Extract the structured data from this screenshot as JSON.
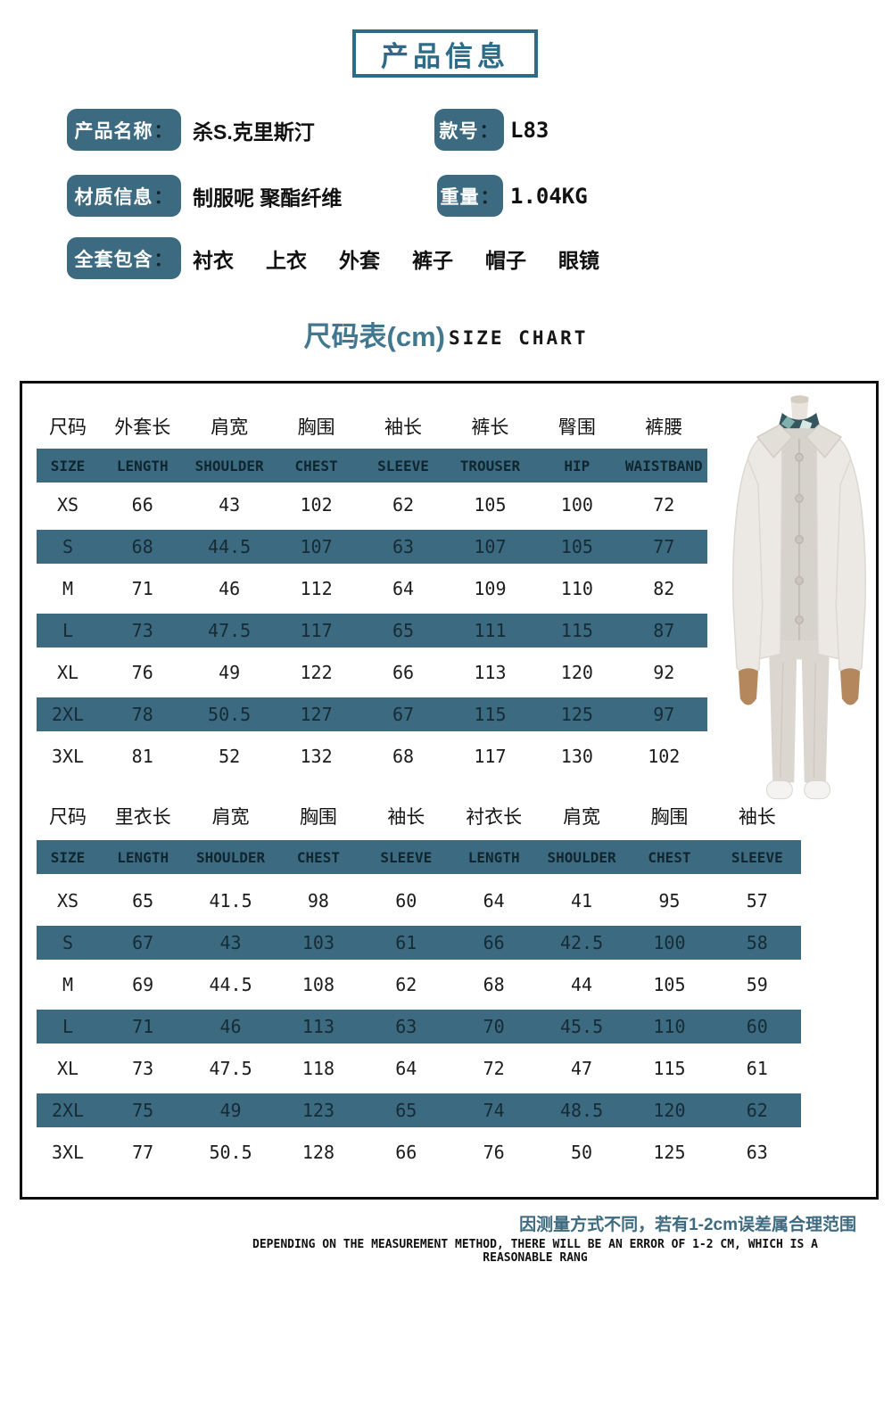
{
  "colors": {
    "accent_teal": "#3c6a80",
    "title_teal": "#2e6b87",
    "heading_teal": "#41788f"
  },
  "punct": {
    "colon": "："
  },
  "page_title": "产品信息",
  "info": {
    "name_label": "产品名称",
    "name_value": "杀S.克里斯汀",
    "model_label": "款号",
    "model_value": "L83",
    "material_label": "材质信息",
    "material_value": "制服呢 聚酯纤维",
    "weight_label": "重量",
    "weight_value": "1.04KG",
    "includes_label": "全套包含",
    "includes_items": [
      "衬衣",
      "上衣",
      "外套",
      "裤子",
      "帽子",
      "眼镜"
    ]
  },
  "size_chart": {
    "title_cn": "尺码表(cm)",
    "title_en": "SIZE CHART",
    "tables": [
      {
        "headers_cn": [
          "尺码",
          "外套长",
          "肩宽",
          "胸围",
          "袖长",
          "裤长",
          "臀围",
          "裤腰"
        ],
        "headers_en": [
          "SIZE",
          "LENGTH",
          "SHOULDER",
          "CHEST",
          "SLEEVE",
          "TROUSER",
          "HIP",
          "WAISTBAND"
        ],
        "rows": [
          [
            "XS",
            "66",
            "43",
            "102",
            "62",
            "105",
            "100",
            "72"
          ],
          [
            "S",
            "68",
            "44.5",
            "107",
            "63",
            "107",
            "105",
            "77"
          ],
          [
            "M",
            "71",
            "46",
            "112",
            "64",
            "109",
            "110",
            "82"
          ],
          [
            "L",
            "73",
            "47.5",
            "117",
            "65",
            "111",
            "115",
            "87"
          ],
          [
            "XL",
            "76",
            "49",
            "122",
            "66",
            "113",
            "120",
            "92"
          ],
          [
            "2XL",
            "78",
            "50.5",
            "127",
            "67",
            "115",
            "125",
            "97"
          ],
          [
            "3XL",
            "81",
            "52",
            "132",
            "68",
            "117",
            "130",
            "102"
          ]
        ]
      },
      {
        "headers_cn": [
          "尺码",
          "里衣长",
          "肩宽",
          "胸围",
          "袖长",
          "衬衣长",
          "肩宽",
          "胸围",
          "袖长"
        ],
        "headers_en": [
          "SIZE",
          "LENGTH",
          "SHOULDER",
          "CHEST",
          "SLEEVE",
          "LENGTH",
          "SHOULDER",
          "CHEST",
          "SLEEVE"
        ],
        "rows": [
          [
            "XS",
            "65",
            "41.5",
            "98",
            "60",
            "64",
            "41",
            "95",
            "57"
          ],
          [
            "S",
            "67",
            "43",
            "103",
            "61",
            "66",
            "42.5",
            "100",
            "58"
          ],
          [
            "M",
            "69",
            "44.5",
            "108",
            "62",
            "68",
            "44",
            "105",
            "59"
          ],
          [
            "L",
            "71",
            "46",
            "113",
            "63",
            "70",
            "45.5",
            "110",
            "60"
          ],
          [
            "XL",
            "73",
            "47.5",
            "118",
            "64",
            "72",
            "47",
            "115",
            "61"
          ],
          [
            "2XL",
            "75",
            "49",
            "123",
            "65",
            "74",
            "48.5",
            "120",
            "62"
          ],
          [
            "3XL",
            "77",
            "50.5",
            "128",
            "66",
            "76",
            "50",
            "125",
            "63"
          ]
        ]
      }
    ]
  },
  "footer": {
    "note_cn": "因测量方式不同，若有1-2cm误差属合理范围",
    "note_en": "DEPENDING ON THE MEASUREMENT METHOD, THERE WILL BE AN ERROR OF 1-2 CM, WHICH IS A REASONABLE RANG"
  }
}
